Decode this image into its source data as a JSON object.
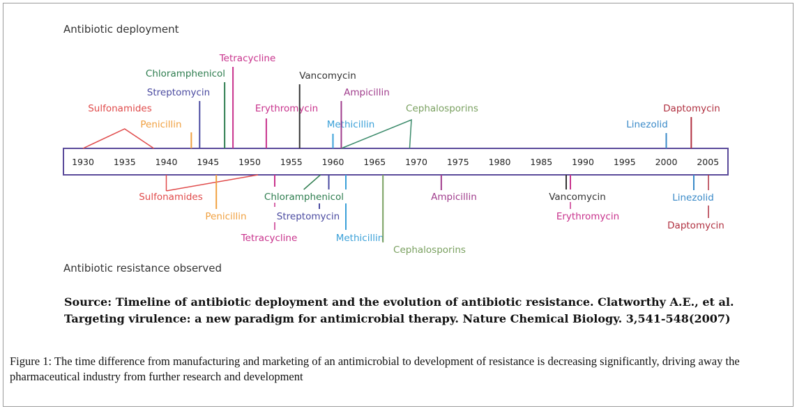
{
  "deployment_title": "Antibiotic deployment",
  "resistance_title": "Antibiotic resistance observed",
  "axis_years": [
    "1930",
    "1935",
    "1940",
    "1945",
    "1950",
    "1955",
    "1960",
    "1965",
    "1970",
    "1975",
    "1980",
    "1985",
    "1990",
    "1995",
    "2000",
    "2005"
  ],
  "deployment": [
    {
      "name": "Sulfonamides",
      "year": 1935,
      "color": "#e04a4a"
    },
    {
      "name": "Penicillin",
      "year": 1943,
      "color": "#f0a040"
    },
    {
      "name": "Streptomycin",
      "year": 1944,
      "color": "#4a4aa0"
    },
    {
      "name": "Chloramphenicol",
      "year": 1947,
      "color": "#2e7d4f"
    },
    {
      "name": "Tetracycline",
      "year": 1948,
      "color": "#c8328c"
    },
    {
      "name": "Erythromycin",
      "year": 1952,
      "color": "#c8328c"
    },
    {
      "name": "Vancomycin",
      "year": 1956,
      "color": "#333333"
    },
    {
      "name": "Methicillin",
      "year": 1960,
      "color": "#3aa0d8"
    },
    {
      "name": "Ampicillin",
      "year": 1961,
      "color": "#a03c8c"
    },
    {
      "name": "Cephalosporins",
      "year": 1964,
      "color": "#7aa060"
    },
    {
      "name": "Linezolid",
      "year": 2000,
      "color": "#3a8ac8"
    },
    {
      "name": "Daptomycin",
      "year": 2003,
      "color": "#b03040"
    }
  ],
  "resistance": [
    {
      "name": "Sulfonamides",
      "year": 1940,
      "color": "#e04a4a"
    },
    {
      "name": "Penicillin",
      "year": 1946,
      "color": "#f0a040"
    },
    {
      "name": "Tetracycline",
      "year": 1953,
      "color": "#c8328c"
    },
    {
      "name": "Chloramphenicol",
      "year": 1959,
      "color": "#2e7d4f"
    },
    {
      "name": "Streptomycin",
      "year": 1959,
      "color": "#4a4aa0"
    },
    {
      "name": "Methicillin",
      "year": 1962,
      "color": "#3aa0d8"
    },
    {
      "name": "Cephalosporins",
      "year": 1966,
      "color": "#7aa060"
    },
    {
      "name": "Ampicillin",
      "year": 1973,
      "color": "#a03c8c"
    },
    {
      "name": "Vancomycin",
      "year": 1988,
      "color": "#333333"
    },
    {
      "name": "Erythromycin",
      "year": 1988,
      "color": "#c8328c"
    },
    {
      "name": "Linezolid",
      "year": 2003,
      "color": "#3a8ac8"
    },
    {
      "name": "Daptomycin",
      "year": 2005,
      "color": "#b03040"
    }
  ],
  "source": {
    "line1": "Source: Timeline of antibiotic deployment and the evolution of antibiotic resistance. Clatworthy A.E., et al.",
    "line2": "Targeting virulence: a new paradigm for antimicrobial therapy. Nature Chemical Biology. 3,541-548(2007)"
  },
  "caption": {
    "label": "Figure 1:",
    "text": " The time difference from manufacturing and marketing of an antimicrobial to development of resistance is decreasing significantly, driving away the pharmaceutical industry from further research and development"
  }
}
